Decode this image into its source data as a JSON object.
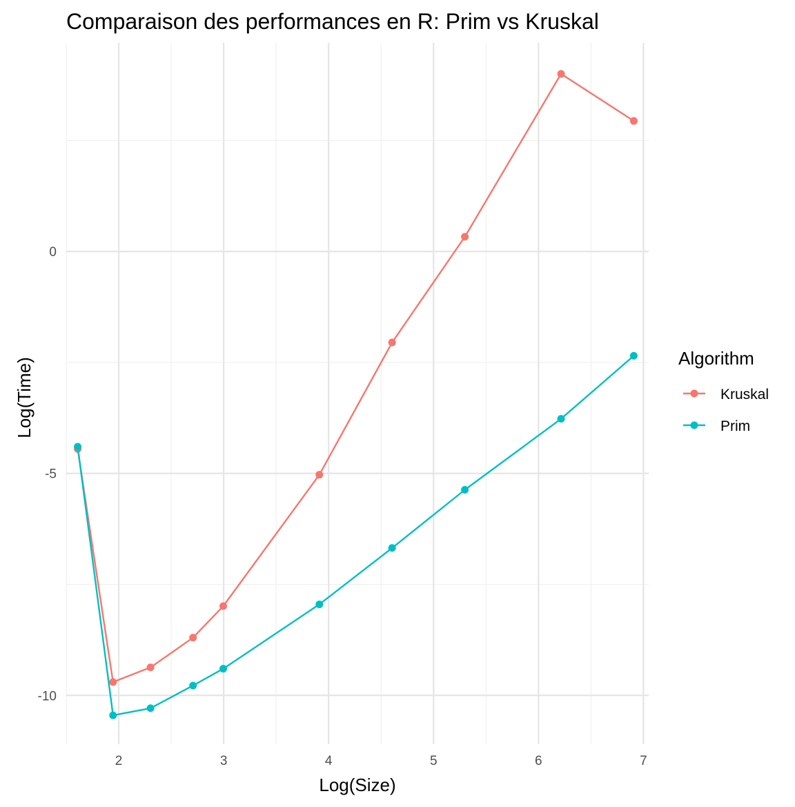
{
  "chart_data": {
    "type": "line",
    "title": "Comparaison des performances en R: Prim vs Kruskal",
    "xlabel": "Log(Size)",
    "ylabel": "Log(Time)",
    "xlim": [
      1.5,
      7.05
    ],
    "ylim": [
      -11.1,
      4.7
    ],
    "x_ticks": [
      2,
      3,
      4,
      5,
      6,
      7
    ],
    "x_tick_labels": [
      "2",
      "3",
      "4",
      "5",
      "6",
      "7"
    ],
    "y_ticks": [
      -10,
      -5,
      0
    ],
    "y_tick_labels": [
      "-10",
      "-5",
      "0"
    ],
    "grid": true,
    "legend": {
      "title": "Algorithm",
      "position": "right"
    },
    "x": [
      1.609,
      1.946,
      2.303,
      2.708,
      2.996,
      3.912,
      4.605,
      5.298,
      6.215,
      6.908
    ],
    "series": [
      {
        "name": "Kruskal",
        "color": "#F8766D",
        "values": [
          -4.45,
          -9.7,
          -9.37,
          -8.7,
          -7.99,
          -5.03,
          -2.05,
          0.33,
          4.0,
          2.94
        ]
      },
      {
        "name": "Prim",
        "color": "#00BFC4",
        "values": [
          -4.4,
          -10.45,
          -10.29,
          -9.78,
          -9.4,
          -7.95,
          -6.68,
          -5.37,
          -3.77,
          -2.35
        ]
      }
    ]
  }
}
